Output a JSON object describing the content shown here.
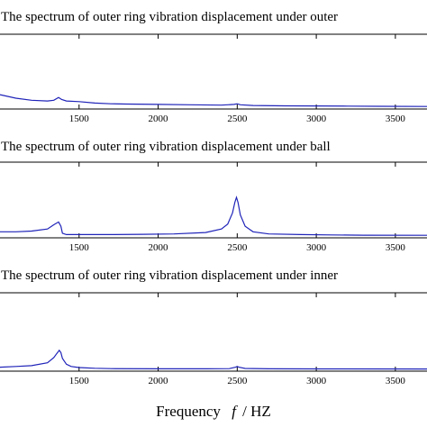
{
  "chart_data": [
    {
      "type": "line",
      "title": "The spectrum of outer ring vibration displacement under outer",
      "xlim": [
        1000,
        3700
      ],
      "ylim": [
        0,
        1
      ],
      "x_ticks": [
        "1500",
        "2000",
        "2500",
        "3000",
        "3500"
      ],
      "series": [
        {
          "x": [
            1000,
            1100,
            1200,
            1300,
            1340,
            1370,
            1390,
            1420,
            1500,
            1600,
            1700,
            1800,
            2000,
            2200,
            2400,
            2480,
            2500,
            2520,
            2600,
            2800,
            3000,
            3200,
            3400,
            3700
          ],
          "y": [
            0.18,
            0.13,
            0.1,
            0.09,
            0.1,
            0.14,
            0.11,
            0.09,
            0.08,
            0.06,
            0.05,
            0.045,
            0.04,
            0.035,
            0.03,
            0.04,
            0.05,
            0.035,
            0.025,
            0.02,
            0.018,
            0.015,
            0.013,
            0.01
          ]
        }
      ]
    },
    {
      "type": "line",
      "title": "The spectrum of outer ring vibration displacement under ball",
      "xlim": [
        1000,
        3700
      ],
      "ylim": [
        0,
        1
      ],
      "x_ticks": [
        "1500",
        "2000",
        "2500",
        "3000",
        "3500"
      ],
      "series": [
        {
          "x": [
            1000,
            1100,
            1200,
            1300,
            1340,
            1370,
            1385,
            1395,
            1420,
            1500,
            1700,
            1900,
            2100,
            2300,
            2400,
            2440,
            2470,
            2485,
            2495,
            2505,
            2520,
            2550,
            2600,
            2700,
            2900,
            3100,
            3300,
            3700
          ],
          "y": [
            0.06,
            0.06,
            0.07,
            0.1,
            0.16,
            0.2,
            0.14,
            0.04,
            0.02,
            0.02,
            0.02,
            0.025,
            0.03,
            0.05,
            0.1,
            0.17,
            0.33,
            0.48,
            0.55,
            0.48,
            0.3,
            0.14,
            0.06,
            0.03,
            0.02,
            0.015,
            0.012,
            0.01
          ]
        }
      ]
    },
    {
      "type": "line",
      "title": "The spectrum of outer ring vibration displacement under inner",
      "xlim": [
        1000,
        3700
      ],
      "ylim": [
        0,
        1
      ],
      "x_ticks": [
        "1500",
        "2000",
        "2500",
        "3000",
        "3500"
      ],
      "series": [
        {
          "x": [
            1000,
            1100,
            1200,
            1300,
            1340,
            1360,
            1375,
            1385,
            1395,
            1420,
            1450,
            1500,
            1600,
            1700,
            2000,
            2300,
            2450,
            2490,
            2500,
            2510,
            2550,
            2700,
            3000,
            3700
          ],
          "y": [
            0.03,
            0.04,
            0.05,
            0.09,
            0.16,
            0.22,
            0.26,
            0.23,
            0.15,
            0.07,
            0.04,
            0.025,
            0.015,
            0.01,
            0.008,
            0.008,
            0.01,
            0.03,
            0.04,
            0.03,
            0.012,
            0.008,
            0.006,
            0.005
          ]
        }
      ]
    }
  ],
  "xlabel_main": "Frequency",
  "xlabel_var": "f",
  "xlabel_unit": "/ HZ"
}
